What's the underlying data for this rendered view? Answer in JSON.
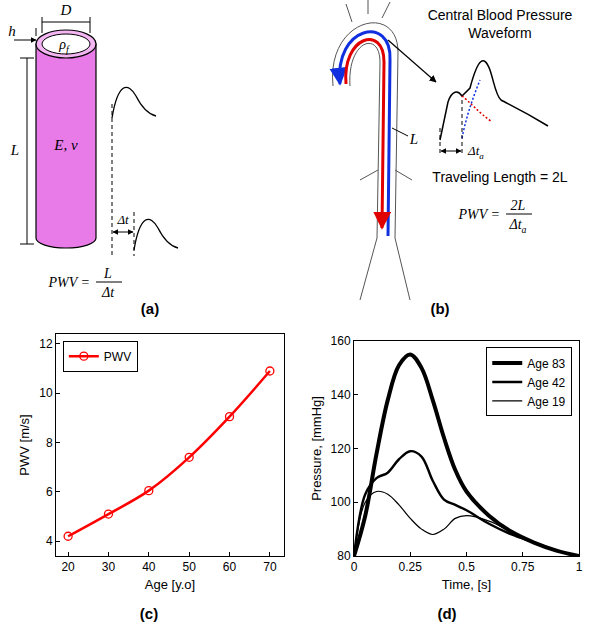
{
  "panels": {
    "a": {
      "label": "(a)",
      "thickness": "h",
      "diameter": "D",
      "density": {
        "base": "ρ",
        "sub": "f"
      },
      "length": "L",
      "material": "E, ν",
      "delay": "Δt",
      "formula": {
        "lhs": "PWV =",
        "num": "L",
        "den": "Δt"
      }
    },
    "b": {
      "label": "(b)",
      "title": "Central Blood Pressure Waveform",
      "length": "L",
      "delay": {
        "base": "Δt",
        "sub": "a"
      },
      "travel": "Traveling Length = 2L",
      "formula": {
        "lhs": "PWV =",
        "num": "2L",
        "den": {
          "base": "Δt",
          "sub": "a"
        }
      }
    }
  },
  "chart_data": [
    {
      "type": "line",
      "panel_label": "(c)",
      "x": [
        20,
        30,
        40,
        50,
        60,
        70
      ],
      "series": [
        {
          "name": "PWV",
          "color": "#ff0000",
          "marker": "open-circle",
          "values": [
            4.2,
            5.1,
            6.05,
            7.4,
            9.05,
            10.9
          ]
        }
      ],
      "xlabel": "Age [y.o]",
      "ylabel": "PWV [m/s]",
      "xlim": [
        17,
        73.5
      ],
      "ylim": [
        3.4,
        12.4
      ],
      "xticks": [
        20,
        30,
        40,
        50,
        60,
        70
      ],
      "yticks": [
        4,
        6,
        8,
        10,
        12
      ],
      "legend": "upper left",
      "grid": false
    },
    {
      "type": "line",
      "panel_label": "(d)",
      "x": [
        0,
        0.05,
        0.1,
        0.15,
        0.2,
        0.25,
        0.3,
        0.35,
        0.4,
        0.45,
        0.5,
        0.6,
        0.7,
        0.8,
        0.9,
        1.0
      ],
      "series": [
        {
          "name": "Age 83",
          "color": "#000000",
          "line_style": "thick",
          "values": [
            80,
            95,
            118,
            138,
            151,
            155,
            150,
            138,
            124,
            112,
            104,
            95,
            89,
            85,
            82,
            80
          ]
        },
        {
          "name": "Age 42",
          "color": "#000000",
          "line_style": "medium",
          "values": [
            80,
            103,
            109,
            111,
            116,
            119,
            117,
            108,
            101,
            99,
            97,
            92,
            88,
            85,
            82,
            80
          ]
        },
        {
          "name": "Age 19",
          "color": "#000000",
          "line_style": "thin",
          "values": [
            80,
            100,
            104,
            103,
            99,
            94,
            90,
            88,
            90,
            94,
            95,
            93,
            89,
            85,
            82,
            80
          ]
        }
      ],
      "xlabel": "Time, [s]",
      "ylabel": "Pressure, [mmHg]",
      "xlim": [
        0,
        1
      ],
      "ylim": [
        80,
        160
      ],
      "xticks": [
        0,
        0.25,
        0.5,
        0.75,
        1
      ],
      "yticks": [
        80,
        100,
        120,
        140,
        160
      ],
      "legend": "upper right",
      "grid": false
    }
  ]
}
